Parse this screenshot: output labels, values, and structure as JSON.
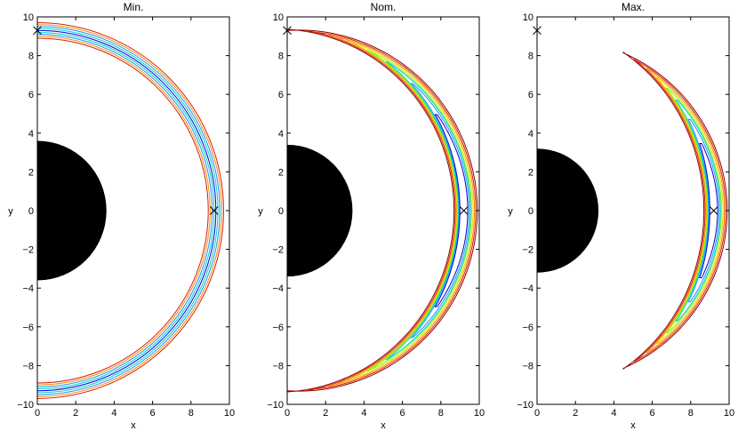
{
  "chart_data": [
    {
      "type": "contour",
      "title": "Min.",
      "xlabel": "x",
      "ylabel": "y",
      "xlim": [
        0,
        10
      ],
      "ylim": [
        -10,
        10
      ],
      "xticks": [
        "0",
        "2",
        "4",
        "6",
        "8",
        "10"
      ],
      "yticks": [
        "10",
        "8",
        "6",
        "4",
        "2",
        "0",
        "−2",
        "−4",
        "−6",
        "−8",
        "−10"
      ],
      "filled_half_disk_radius": 3.6,
      "markers": [
        {
          "x": 0,
          "y": 9.3
        },
        {
          "x": 9.2,
          "y": 0
        }
      ],
      "shape": "full-ring",
      "arc_extent_deg": 90
    },
    {
      "type": "contour",
      "title": "Nom.",
      "xlabel": "x",
      "ylabel": "y",
      "xlim": [
        0,
        10
      ],
      "ylim": [
        -10,
        10
      ],
      "xticks": [
        "0",
        "2",
        "4",
        "6",
        "8",
        "10"
      ],
      "yticks": [
        "10",
        "8",
        "6",
        "4",
        "2",
        "0",
        "−2",
        "−4",
        "−6",
        "−8",
        "−10"
      ],
      "filled_half_disk_radius": 3.4,
      "markers": [
        {
          "x": 0,
          "y": 9.3
        },
        {
          "x": 9.2,
          "y": 0
        }
      ],
      "shape": "crescent",
      "arc_extent_deg": 90
    },
    {
      "type": "contour",
      "title": "Max.",
      "xlabel": "x",
      "ylabel": "y",
      "xlim": [
        0,
        10
      ],
      "ylim": [
        -10,
        10
      ],
      "xticks": [
        "0",
        "2",
        "4",
        "6",
        "8",
        "10"
      ],
      "yticks": [
        "10",
        "8",
        "6",
        "4",
        "2",
        "0",
        "−2",
        "−4",
        "−6",
        "−8",
        "−10"
      ],
      "filled_half_disk_radius": 3.2,
      "markers": [
        {
          "x": 0,
          "y": 9.3
        },
        {
          "x": 9.2,
          "y": 0
        }
      ],
      "shape": "crescent",
      "arc_extent_deg": 61
    }
  ],
  "colors": {
    "contours": [
      "#8b0000",
      "#d62000",
      "#ff8c00",
      "#e8d800",
      "#7cfc00",
      "#00ced1",
      "#1e90ff",
      "#0000cd",
      "#00008b"
    ],
    "fill": "#000000"
  }
}
